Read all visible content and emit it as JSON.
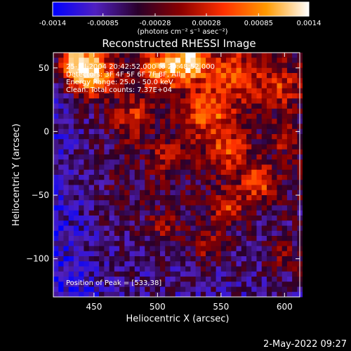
{
  "chart_data": {
    "type": "heatmap",
    "title": "Reconstructed RHESSI Image",
    "xlabel": "Heliocentric X (arcsec)",
    "ylabel": "Heliocentric Y (arcsec)",
    "xlim": [
      418,
      612
    ],
    "ylim": [
      -130,
      62
    ],
    "x_ticks": [
      450,
      500,
      550,
      600
    ],
    "y_ticks": [
      50,
      0,
      -50,
      -100
    ],
    "grid": false,
    "colorbar": {
      "position": "top",
      "range": [
        -0.0014,
        0.0014
      ],
      "tick_values": [
        -0.0014,
        -0.00085,
        -0.00028,
        0.00028,
        0.00085,
        0.0014
      ],
      "tick_labels": [
        "-0.0014",
        "-0.00085",
        "-0.00028",
        "0.00028",
        "0.00085",
        "0.0014"
      ],
      "units_label": "(photons cm⁻² s⁻¹ asec⁻²)",
      "colors": [
        "#0000ff",
        "#5020c0",
        "#2a002a",
        "#8b0000",
        "#ff3000",
        "#ff9a00",
        "#ffffff"
      ]
    },
    "annotations": {
      "lines": [
        "25-Jul-2004 20:42:52.000 to 20:48:52.000",
        "Detectors: 3F 4F 5F 6F 7F 8F, All",
        "Energy Range: 25.0 - 50.0 keV",
        "Clean. Total counts: 7.37E+04"
      ],
      "peak": "Position of Peak = [533,38]"
    },
    "features": [
      {
        "x": 448,
        "y": 45,
        "sigma": 13,
        "amp": 1.0
      },
      {
        "x": 435,
        "y": 55,
        "sigma": 10,
        "amp": 0.8
      },
      {
        "x": 525,
        "y": 55,
        "sigma": 10,
        "amp": 1.0
      },
      {
        "x": 502,
        "y": 48,
        "sigma": 12,
        "amp": 0.75
      },
      {
        "x": 560,
        "y": 45,
        "sigma": 14,
        "amp": 0.55
      },
      {
        "x": 595,
        "y": 35,
        "sigma": 12,
        "amp": 0.45
      },
      {
        "x": 540,
        "y": 15,
        "sigma": 14,
        "amp": 0.6
      },
      {
        "x": 480,
        "y": 10,
        "sigma": 10,
        "amp": 0.45
      },
      {
        "x": 555,
        "y": -15,
        "sigma": 12,
        "amp": 0.5
      },
      {
        "x": 510,
        "y": -20,
        "sigma": 9,
        "amp": 0.4
      },
      {
        "x": 580,
        "y": -40,
        "sigma": 10,
        "amp": 0.55
      },
      {
        "x": 555,
        "y": -60,
        "sigma": 9,
        "amp": 0.5
      },
      {
        "x": 540,
        "y": -90,
        "sigma": 10,
        "amp": 0.35
      },
      {
        "x": 600,
        "y": -100,
        "sigma": 10,
        "amp": 0.3
      },
      {
        "x": 505,
        "y": -75,
        "sigma": 9,
        "amp": 0.3
      },
      {
        "x": 600,
        "y": -5,
        "sigma": 8,
        "amp": 0.35
      }
    ],
    "noise_amp": 0.25
  },
  "footer": {
    "timestamp": "2-May-2022 09:27"
  }
}
